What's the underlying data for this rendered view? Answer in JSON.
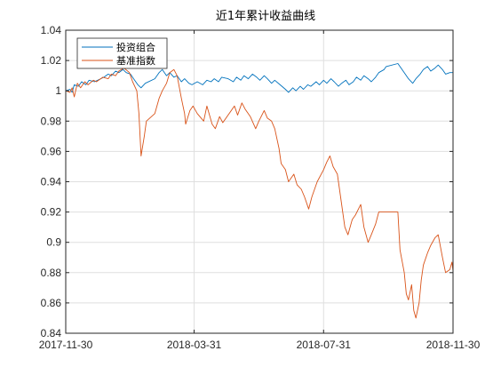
{
  "chart_data": {
    "type": "line",
    "title": "近1年累计收益曲线",
    "xlabel": "",
    "ylabel": "",
    "ylim": [
      0.84,
      1.04
    ],
    "yticks": [
      0.84,
      0.86,
      0.88,
      0.9,
      0.92,
      0.94,
      0.96,
      0.98,
      1,
      1.02,
      1.04
    ],
    "ytick_labels": [
      "0.84",
      "0.86",
      "0.88",
      "0.9",
      "0.92",
      "0.94",
      "0.96",
      "0.98",
      "1",
      "1.02",
      "1.04"
    ],
    "xlim": [
      "2017-11-30",
      "2018-11-30"
    ],
    "xtick_labels": [
      "2017-11-30",
      "2018-03-31",
      "2018-07-31",
      "2018-11-30"
    ],
    "grid": true,
    "legend": "top-left",
    "series": [
      {
        "name": "投资组合",
        "color": "#0072BD",
        "points": [
          [
            "2017-11-30",
            1.0
          ],
          [
            "2017-12-04",
            1.001
          ],
          [
            "2017-12-06",
            0.999
          ],
          [
            "2017-12-08",
            1.004
          ],
          [
            "2017-12-12",
            1.003
          ],
          [
            "2017-12-15",
            1.006
          ],
          [
            "2017-12-19",
            1.004
          ],
          [
            "2017-12-22",
            1.007
          ],
          [
            "2017-12-27",
            1.006
          ],
          [
            "2018-01-02",
            1.008
          ],
          [
            "2018-01-05",
            1.009
          ],
          [
            "2018-01-09",
            1.011
          ],
          [
            "2018-01-12",
            1.01
          ],
          [
            "2018-01-16",
            1.013
          ],
          [
            "2018-01-19",
            1.012
          ],
          [
            "2018-01-23",
            1.014
          ],
          [
            "2018-01-26",
            1.012
          ],
          [
            "2018-01-30",
            1.011
          ],
          [
            "2018-02-02",
            1.008
          ],
          [
            "2018-02-06",
            1.004
          ],
          [
            "2018-02-09",
            1.002
          ],
          [
            "2018-02-13",
            1.005
          ],
          [
            "2018-02-22",
            1.008
          ],
          [
            "2018-02-26",
            1.012
          ],
          [
            "2018-03-01",
            1.014
          ],
          [
            "2018-03-05",
            1.01
          ],
          [
            "2018-03-08",
            1.012
          ],
          [
            "2018-03-12",
            1.009
          ],
          [
            "2018-03-15",
            1.01
          ],
          [
            "2018-03-19",
            1.006
          ],
          [
            "2018-03-22",
            1.008
          ],
          [
            "2018-03-26",
            1.005
          ],
          [
            "2018-03-29",
            1.004
          ],
          [
            "2018-04-03",
            1.006
          ],
          [
            "2018-04-08",
            1.004
          ],
          [
            "2018-04-12",
            1.007
          ],
          [
            "2018-04-16",
            1.006
          ],
          [
            "2018-04-19",
            1.008
          ],
          [
            "2018-04-23",
            1.006
          ],
          [
            "2018-04-26",
            1.009
          ],
          [
            "2018-05-02",
            1.008
          ],
          [
            "2018-05-07",
            1.006
          ],
          [
            "2018-05-10",
            1.009
          ],
          [
            "2018-05-14",
            1.007
          ],
          [
            "2018-05-17",
            1.01
          ],
          [
            "2018-05-21",
            1.008
          ],
          [
            "2018-05-25",
            1.011
          ],
          [
            "2018-05-29",
            1.009
          ],
          [
            "2018-06-01",
            1.007
          ],
          [
            "2018-06-05",
            1.01
          ],
          [
            "2018-06-08",
            1.008
          ],
          [
            "2018-06-12",
            1.005
          ],
          [
            "2018-06-15",
            1.007
          ],
          [
            "2018-06-20",
            1.004
          ],
          [
            "2018-06-25",
            1.001
          ],
          [
            "2018-06-28",
            0.999
          ],
          [
            "2018-07-02",
            1.002
          ],
          [
            "2018-07-05",
            1.0
          ],
          [
            "2018-07-09",
            1.003
          ],
          [
            "2018-07-12",
            1.001
          ],
          [
            "2018-07-16",
            1.004
          ],
          [
            "2018-07-19",
            1.003
          ],
          [
            "2018-07-24",
            1.006
          ],
          [
            "2018-07-27",
            1.004
          ],
          [
            "2018-07-31",
            1.007
          ],
          [
            "2018-08-03",
            1.005
          ],
          [
            "2018-08-07",
            1.008
          ],
          [
            "2018-08-10",
            1.006
          ],
          [
            "2018-08-14",
            1.003
          ],
          [
            "2018-08-17",
            1.005
          ],
          [
            "2018-08-21",
            1.007
          ],
          [
            "2018-08-24",
            1.004
          ],
          [
            "2018-08-28",
            1.006
          ],
          [
            "2018-08-31",
            1.009
          ],
          [
            "2018-09-04",
            1.007
          ],
          [
            "2018-09-07",
            1.01
          ],
          [
            "2018-09-11",
            1.008
          ],
          [
            "2018-09-14",
            1.006
          ],
          [
            "2018-09-18",
            1.009
          ],
          [
            "2018-09-21",
            1.012
          ],
          [
            "2018-09-26",
            1.014
          ],
          [
            "2018-09-28",
            1.016
          ],
          [
            "2018-10-09",
            1.018
          ],
          [
            "2018-10-12",
            1.015
          ],
          [
            "2018-10-16",
            1.011
          ],
          [
            "2018-10-19",
            1.008
          ],
          [
            "2018-10-23",
            1.005
          ],
          [
            "2018-10-26",
            1.008
          ],
          [
            "2018-10-30",
            1.011
          ],
          [
            "2018-11-02",
            1.014
          ],
          [
            "2018-11-06",
            1.016
          ],
          [
            "2018-11-09",
            1.013
          ],
          [
            "2018-11-13",
            1.015
          ],
          [
            "2018-11-16",
            1.017
          ],
          [
            "2018-11-20",
            1.014
          ],
          [
            "2018-11-23",
            1.011
          ],
          [
            "2018-11-27",
            1.012
          ],
          [
            "2018-11-30",
            1.012
          ]
        ]
      },
      {
        "name": "基准指数",
        "color": "#D95319",
        "points": [
          [
            "2017-11-30",
            1.0
          ],
          [
            "2017-12-04",
            0.999
          ],
          [
            "2017-12-06",
            1.002
          ],
          [
            "2017-12-08",
            0.996
          ],
          [
            "2017-12-11",
            1.005
          ],
          [
            "2017-12-14",
            1.002
          ],
          [
            "2017-12-18",
            1.006
          ],
          [
            "2017-12-21",
            1.004
          ],
          [
            "2017-12-26",
            1.007
          ],
          [
            "2017-12-29",
            1.006
          ],
          [
            "2018-01-04",
            1.009
          ],
          [
            "2018-01-09",
            1.008
          ],
          [
            "2018-01-12",
            1.011
          ],
          [
            "2018-01-16",
            1.01
          ],
          [
            "2018-01-19",
            1.013
          ],
          [
            "2018-01-24",
            1.015
          ],
          [
            "2018-01-29",
            1.012
          ],
          [
            "2018-02-01",
            1.006
          ],
          [
            "2018-02-05",
            1.0
          ],
          [
            "2018-02-07",
            0.985
          ],
          [
            "2018-02-09",
            0.957
          ],
          [
            "2018-02-12",
            0.97
          ],
          [
            "2018-02-14",
            0.98
          ],
          [
            "2018-02-22",
            0.985
          ],
          [
            "2018-02-26",
            0.995
          ],
          [
            "2018-03-01",
            1.0
          ],
          [
            "2018-03-05",
            1.005
          ],
          [
            "2018-03-08",
            1.012
          ],
          [
            "2018-03-12",
            1.014
          ],
          [
            "2018-03-15",
            1.01
          ],
          [
            "2018-03-19",
            0.995
          ],
          [
            "2018-03-22",
            0.985
          ],
          [
            "2018-03-23",
            0.978
          ],
          [
            "2018-03-27",
            0.987
          ],
          [
            "2018-03-30",
            0.99
          ],
          [
            "2018-04-03",
            0.985
          ],
          [
            "2018-04-09",
            0.98
          ],
          [
            "2018-04-12",
            0.99
          ],
          [
            "2018-04-17",
            0.978
          ],
          [
            "2018-04-20",
            0.975
          ],
          [
            "2018-04-24",
            0.983
          ],
          [
            "2018-04-27",
            0.979
          ],
          [
            "2018-05-03",
            0.985
          ],
          [
            "2018-05-08",
            0.99
          ],
          [
            "2018-05-11",
            0.984
          ],
          [
            "2018-05-15",
            0.992
          ],
          [
            "2018-05-18",
            0.988
          ],
          [
            "2018-05-23",
            0.983
          ],
          [
            "2018-05-28",
            0.975
          ],
          [
            "2018-05-31",
            0.98
          ],
          [
            "2018-06-05",
            0.987
          ],
          [
            "2018-06-08",
            0.982
          ],
          [
            "2018-06-12",
            0.98
          ],
          [
            "2018-06-15",
            0.975
          ],
          [
            "2018-06-19",
            0.962
          ],
          [
            "2018-06-21",
            0.952
          ],
          [
            "2018-06-25",
            0.948
          ],
          [
            "2018-06-28",
            0.94
          ],
          [
            "2018-07-03",
            0.945
          ],
          [
            "2018-07-06",
            0.938
          ],
          [
            "2018-07-10",
            0.935
          ],
          [
            "2018-07-13",
            0.93
          ],
          [
            "2018-07-17",
            0.922
          ],
          [
            "2018-07-20",
            0.93
          ],
          [
            "2018-07-25",
            0.94
          ],
          [
            "2018-07-31",
            0.948
          ],
          [
            "2018-08-03",
            0.953
          ],
          [
            "2018-08-06",
            0.957
          ],
          [
            "2018-08-09",
            0.95
          ],
          [
            "2018-08-13",
            0.945
          ],
          [
            "2018-08-16",
            0.93
          ],
          [
            "2018-08-20",
            0.91
          ],
          [
            "2018-08-23",
            0.905
          ],
          [
            "2018-08-27",
            0.915
          ],
          [
            "2018-08-30",
            0.918
          ],
          [
            "2018-09-04",
            0.925
          ],
          [
            "2018-09-07",
            0.91
          ],
          [
            "2018-09-11",
            0.9
          ],
          [
            "2018-09-14",
            0.905
          ],
          [
            "2018-09-18",
            0.912
          ],
          [
            "2018-09-21",
            0.92
          ],
          [
            "2018-09-26",
            0.92
          ],
          [
            "2018-09-28",
            0.92
          ],
          [
            "2018-10-09",
            0.92
          ],
          [
            "2018-10-11",
            0.895
          ],
          [
            "2018-10-15",
            0.88
          ],
          [
            "2018-10-17",
            0.866
          ],
          [
            "2018-10-19",
            0.862
          ],
          [
            "2018-10-22",
            0.872
          ],
          [
            "2018-10-24",
            0.855
          ],
          [
            "2018-10-26",
            0.85
          ],
          [
            "2018-10-29",
            0.86
          ],
          [
            "2018-10-31",
            0.875
          ],
          [
            "2018-11-02",
            0.885
          ],
          [
            "2018-11-06",
            0.893
          ],
          [
            "2018-11-09",
            0.898
          ],
          [
            "2018-11-13",
            0.903
          ],
          [
            "2018-11-16",
            0.905
          ],
          [
            "2018-11-20",
            0.89
          ],
          [
            "2018-11-23",
            0.88
          ],
          [
            "2018-11-27",
            0.882
          ],
          [
            "2018-11-29",
            0.887
          ],
          [
            "2018-11-30",
            0.881
          ]
        ]
      }
    ]
  }
}
